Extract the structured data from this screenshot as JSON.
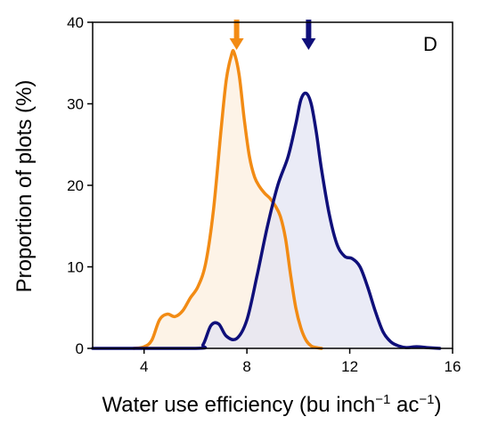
{
  "chart_data": {
    "type": "area",
    "panel_label": "D",
    "xlabel_main": "Water use efficiency (bu inch",
    "xlabel_sup1": "−1",
    "xlabel_mid": " ac",
    "xlabel_sup2": "−1",
    "xlabel_end": ")",
    "ylabel": "Proportion of plots (%)",
    "xlim": [
      2,
      16
    ],
    "ylim": [
      0,
      40
    ],
    "xticks": [
      4,
      8,
      12,
      16
    ],
    "yticks": [
      0,
      10,
      20,
      30,
      40
    ],
    "grid": false,
    "series": [
      {
        "color": "#F28B14",
        "fill": "#FCEFDF",
        "arrow_x": 7.6,
        "x": [
          3.6,
          4.0,
          4.3,
          4.6,
          4.9,
          5.2,
          5.5,
          5.8,
          6.1,
          6.4,
          6.7,
          7.0,
          7.2,
          7.4,
          7.5,
          7.7,
          7.9,
          8.1,
          8.3,
          8.5,
          8.7,
          8.9,
          9.1,
          9.3,
          9.5,
          9.7,
          9.9,
          10.1,
          10.3,
          10.5,
          10.7,
          10.9
        ],
        "values": [
          0,
          0.2,
          1.0,
          3.5,
          4.2,
          3.9,
          4.6,
          6.2,
          7.6,
          10.5,
          17.0,
          27.0,
          33.0,
          36.0,
          36.3,
          33.5,
          28.0,
          23.5,
          21.0,
          19.8,
          19.0,
          18.4,
          17.5,
          16.2,
          13.5,
          9.0,
          5.0,
          2.5,
          1.0,
          0.3,
          0.1,
          0
        ]
      },
      {
        "color": "#0F0F7A",
        "fill": "#E3E4F3",
        "arrow_x": 10.4,
        "x": [
          2.0,
          6.0,
          6.3,
          6.6,
          6.9,
          7.2,
          7.6,
          8.0,
          8.4,
          8.8,
          9.2,
          9.6,
          9.9,
          10.1,
          10.3,
          10.5,
          10.7,
          10.9,
          11.2,
          11.5,
          11.8,
          12.1,
          12.4,
          12.7,
          13.0,
          13.3,
          13.6,
          13.9,
          14.2,
          14.6,
          15.0,
          15.5
        ],
        "values": [
          0,
          0,
          0.5,
          2.8,
          3.0,
          1.5,
          1.2,
          3.5,
          9.0,
          15.0,
          20.0,
          23.5,
          27.5,
          30.5,
          31.3,
          30.0,
          26.5,
          22.0,
          16.5,
          12.8,
          11.3,
          11.0,
          10.0,
          7.5,
          4.5,
          2.0,
          0.8,
          0.3,
          0.1,
          0.2,
          0.1,
          0
        ]
      }
    ]
  }
}
